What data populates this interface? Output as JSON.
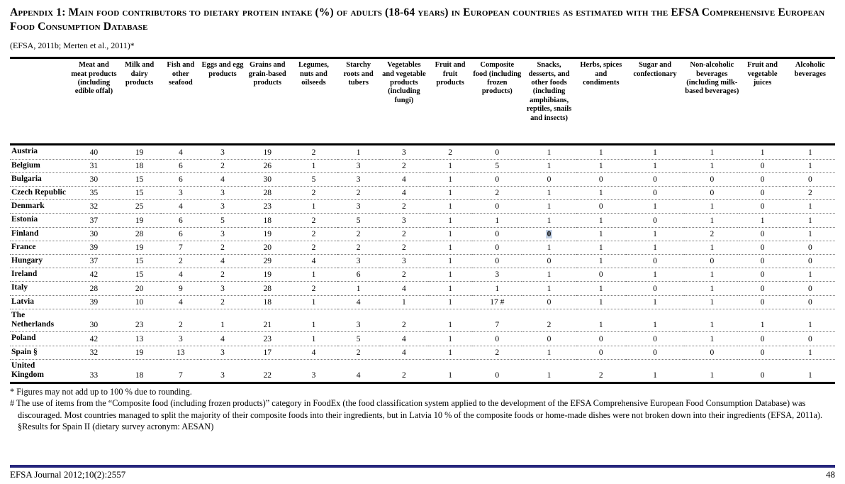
{
  "title": "Appendix 1: Main food contributors to dietary protein intake (%) of adults (18-64 years) in European countries as estimated with the EFSA Comprehensive European Food Consumption Database",
  "subtitle": "(EFSA, 2011b; Merten et al., 2011)*",
  "table": {
    "columns": [
      "Meat and meat products (including edible offal)",
      "Milk and dairy products",
      "Fish and other seafood",
      "Eggs and egg products",
      "Grains and grain-based products",
      "Legumes, nuts and oilseeds",
      "Starchy roots and tubers",
      "Vegetables and vegetable products (including fungi)",
      "Fruit and fruit products",
      "Composite food (including frozen products)",
      "Snacks, desserts, and other foods (including amphibians, reptiles, snails and insects)",
      "Herbs, spices and condiments",
      "Sugar and confectionary",
      "Non-alcoholic beverages (including milk-based beverages)",
      "Fruit and vegetable juices",
      "Alcoholic beverages"
    ],
    "rows": [
      {
        "country": "Austria",
        "values": [
          "40",
          "19",
          "4",
          "3",
          "19",
          "2",
          "1",
          "3",
          "2",
          "0",
          "1",
          "1",
          "1",
          "1",
          "1",
          "1"
        ]
      },
      {
        "country": "Belgium",
        "values": [
          "31",
          "18",
          "6",
          "2",
          "26",
          "1",
          "3",
          "2",
          "1",
          "5",
          "1",
          "1",
          "1",
          "1",
          "0",
          "1"
        ]
      },
      {
        "country": "Bulgaria",
        "values": [
          "30",
          "15",
          "6",
          "4",
          "30",
          "5",
          "3",
          "4",
          "1",
          "0",
          "0",
          "0",
          "0",
          "0",
          "0",
          "0"
        ]
      },
      {
        "country": "Czech Republic",
        "values": [
          "35",
          "15",
          "3",
          "3",
          "28",
          "2",
          "2",
          "4",
          "1",
          "2",
          "1",
          "1",
          "0",
          "0",
          "0",
          "2"
        ]
      },
      {
        "country": "Denmark",
        "values": [
          "32",
          "25",
          "4",
          "3",
          "23",
          "1",
          "3",
          "2",
          "1",
          "0",
          "1",
          "0",
          "1",
          "1",
          "0",
          "1"
        ]
      },
      {
        "country": "Estonia",
        "values": [
          "37",
          "19",
          "6",
          "5",
          "18",
          "2",
          "5",
          "3",
          "1",
          "1",
          "1",
          "1",
          "0",
          "1",
          "1",
          "1"
        ]
      },
      {
        "country": "Finland",
        "values": [
          "30",
          "28",
          "6",
          "3",
          "19",
          "2",
          "2",
          "2",
          "1",
          "0",
          "0",
          "1",
          "1",
          "2",
          "0",
          "1"
        ],
        "highlight_cols": [
          10
        ]
      },
      {
        "country": "France",
        "values": [
          "39",
          "19",
          "7",
          "2",
          "20",
          "2",
          "2",
          "2",
          "1",
          "0",
          "1",
          "1",
          "1",
          "1",
          "0",
          "0"
        ]
      },
      {
        "country": "Hungary",
        "values": [
          "37",
          "15",
          "2",
          "4",
          "29",
          "4",
          "3",
          "3",
          "1",
          "0",
          "0",
          "1",
          "0",
          "0",
          "0",
          "0"
        ]
      },
      {
        "country": "Ireland",
        "values": [
          "42",
          "15",
          "4",
          "2",
          "19",
          "1",
          "6",
          "2",
          "1",
          "3",
          "1",
          "0",
          "1",
          "1",
          "0",
          "1"
        ]
      },
      {
        "country": "Italy",
        "values": [
          "28",
          "20",
          "9",
          "3",
          "28",
          "2",
          "1",
          "4",
          "1",
          "1",
          "1",
          "1",
          "0",
          "1",
          "0",
          "0"
        ]
      },
      {
        "country": "Latvia",
        "values": [
          "39",
          "10",
          "4",
          "2",
          "18",
          "1",
          "4",
          "1",
          "1",
          "17 #",
          "0",
          "1",
          "1",
          "1",
          "0",
          "0"
        ]
      },
      {
        "country": "The Netherlands",
        "values": [
          "30",
          "23",
          "2",
          "1",
          "21",
          "1",
          "3",
          "2",
          "1",
          "7",
          "2",
          "1",
          "1",
          "1",
          "1",
          "1"
        ]
      },
      {
        "country": "Poland",
        "values": [
          "42",
          "13",
          "3",
          "4",
          "23",
          "1",
          "5",
          "4",
          "1",
          "0",
          "0",
          "0",
          "0",
          "1",
          "0",
          "0"
        ]
      },
      {
        "country": "Spain §",
        "values": [
          "32",
          "19",
          "13",
          "3",
          "17",
          "4",
          "2",
          "4",
          "1",
          "2",
          "1",
          "0",
          "0",
          "0",
          "0",
          "1"
        ]
      },
      {
        "country": "United Kingdom",
        "values": [
          "33",
          "18",
          "7",
          "3",
          "22",
          "3",
          "4",
          "2",
          "1",
          "0",
          "1",
          "2",
          "1",
          "1",
          "0",
          "1"
        ]
      }
    ]
  },
  "footnotes": [
    "* Figures may not add up to 100 % due to rounding.",
    "# The use of items from the “Composite food (including frozen products)” category in FoodEx (the food classification system applied to the development of the EFSA Comprehensive European Food Consumption Database) was discouraged. Most countries managed to split the majority of their composite foods into their ingredients, but in Latvia 10 % of the composite foods or home-made dishes were not broken down into their ingredients (EFSA, 2011a). §Results for Spain II (dietary survey acronym: AESAN)"
  ],
  "footer": {
    "journal": "EFSA Journal 2012;10(2):2557",
    "page_number": "48"
  },
  "colors": {
    "footer_rule": "#26267c",
    "highlight_bg": "#c4d2e6"
  }
}
